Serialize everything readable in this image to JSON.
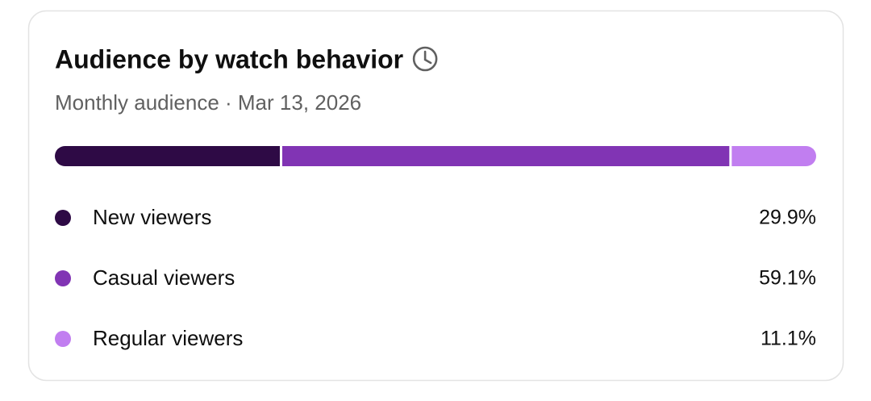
{
  "chart_data": {
    "type": "stacked-bar",
    "title": "Audience by watch behavior",
    "subtitle": "Monthly audience · Mar 13, 2026",
    "series": [
      {
        "name": "New viewers",
        "color": "#2e0a45",
        "values": [
          29.9
        ],
        "value_labels": [
          "29.9%"
        ]
      },
      {
        "name": "Casual viewers",
        "color": "#8134b4",
        "values": [
          59.1
        ],
        "value_labels": [
          "59.1%"
        ]
      },
      {
        "name": "Regular viewers",
        "color": "#c17ef0",
        "values": [
          11.1
        ],
        "value_labels": [
          "11.1%"
        ]
      }
    ]
  }
}
